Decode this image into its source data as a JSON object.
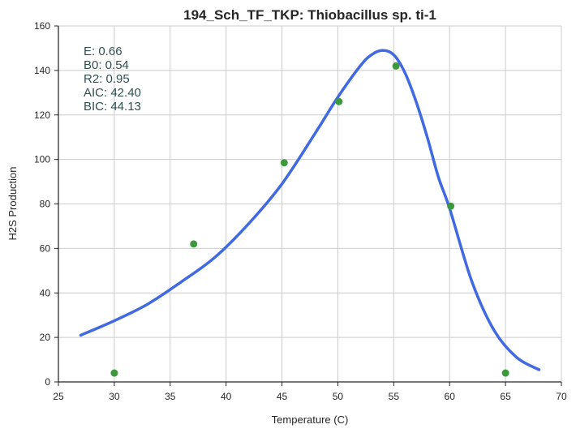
{
  "chart_data": {
    "type": "line",
    "title": "194_Sch_TF_TKP: Thiobacillus sp. ti-1",
    "xlabel": "Temperature (C)",
    "ylabel": "H2S Production",
    "xlim": [
      25,
      70
    ],
    "ylim": [
      0,
      160
    ],
    "x_ticks": [
      "25",
      "30",
      "35",
      "40",
      "45",
      "50",
      "55",
      "60",
      "65",
      "70"
    ],
    "y_ticks": [
      "0",
      "20",
      "40",
      "60",
      "80",
      "100",
      "120",
      "140",
      "160"
    ],
    "grid": true,
    "annotations": [
      "E:  0.66",
      "B0:  0.54",
      "R2:  0.95",
      "AIC: 42.40",
      "BIC: 44.13"
    ],
    "colors": {
      "fit": "#4169e1",
      "points": "#3c9a3c",
      "grid": "#cccccc",
      "axis": "#262626"
    },
    "series": [
      {
        "kind": "scatter",
        "x": [
          30.0,
          37.1,
          45.2,
          50.1,
          55.2,
          60.1,
          65.0
        ],
        "y": [
          4,
          62,
          98.5,
          126,
          142,
          79,
          4
        ]
      },
      {
        "kind": "line",
        "x": [
          27,
          30,
          33,
          36,
          39,
          42,
          45,
          48,
          50,
          52,
          53,
          54,
          55,
          56,
          57,
          58,
          59,
          60,
          62,
          64,
          66,
          68
        ],
        "y": [
          21,
          27.5,
          35,
          45,
          56,
          71,
          89,
          112,
          128,
          142,
          147,
          149,
          147,
          139,
          126,
          110,
          92,
          78,
          45,
          23,
          11,
          5.5
        ]
      }
    ]
  }
}
